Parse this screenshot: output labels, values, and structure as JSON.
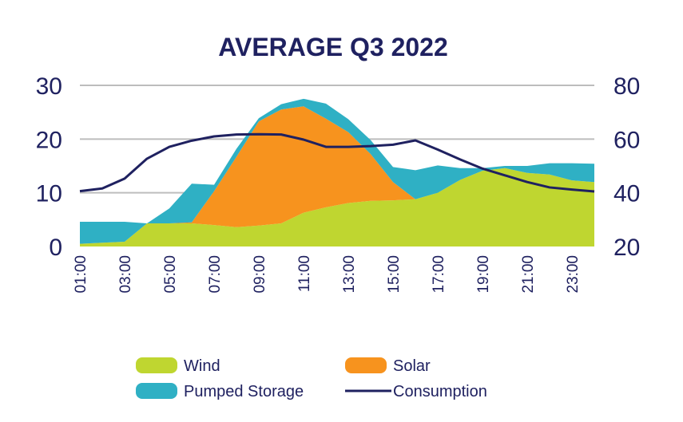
{
  "chart_data": {
    "type": "area",
    "title": "AVERAGE Q3 2022",
    "x": [
      "01:00",
      "02:00",
      "03:00",
      "04:00",
      "05:00",
      "06:00",
      "07:00",
      "08:00",
      "09:00",
      "10:00",
      "11:00",
      "12:00",
      "13:00",
      "14:00",
      "15:00",
      "16:00",
      "17:00",
      "18:00",
      "19:00",
      "20:00",
      "21:00",
      "22:00",
      "23:00",
      "24:00"
    ],
    "x_tick_labels": [
      "01:00",
      "03:00",
      "05:00",
      "07:00",
      "09:00",
      "11:00",
      "13:00",
      "15:00",
      "17:00",
      "19:00",
      "21:00",
      "23:00"
    ],
    "y_left": {
      "ylim": [
        0,
        30
      ],
      "ticks": [
        0,
        10,
        20,
        30
      ]
    },
    "y_right": {
      "ylim": [
        20,
        80
      ],
      "ticks": [
        20,
        40,
        60,
        80
      ]
    },
    "grid": true,
    "legend_position": "bottom",
    "series": [
      {
        "name": "Wind",
        "kind": "stacked-area",
        "axis": "left",
        "color": "#bfd630",
        "values": [
          0.5,
          0.7,
          0.9,
          4.3,
          4.3,
          4.3,
          4.0,
          3.6,
          3.9,
          4.3,
          6.3,
          7.3,
          8.1,
          8.5,
          8.6,
          8.8,
          10.0,
          12.4,
          14.1,
          14.6,
          13.7,
          13.4,
          12.3,
          12.0
        ]
      },
      {
        "name": "Solar",
        "kind": "stacked-area",
        "axis": "left",
        "color": "#f7931e",
        "values": [
          0,
          0,
          0,
          0,
          0,
          0.2,
          6.3,
          13.1,
          19.4,
          21.2,
          19.8,
          16.5,
          13.2,
          8.7,
          3.4,
          0,
          0,
          0,
          0,
          0,
          0,
          0,
          0,
          0
        ]
      },
      {
        "name": "Pumped Storage",
        "kind": "stacked-area",
        "axis": "left",
        "color": "#2fb0c4",
        "values": [
          4.1,
          3.9,
          3.7,
          0,
          2.8,
          7.2,
          1.2,
          1.5,
          0.6,
          1.0,
          1.4,
          2.8,
          2.4,
          2.6,
          2.8,
          5.4,
          5.1,
          2.2,
          0.5,
          0.4,
          1.3,
          2.1,
          3.2,
          3.4
        ]
      },
      {
        "name": "Consumption",
        "kind": "line",
        "axis": "right",
        "color": "#1f2160",
        "values": [
          40.6,
          41.6,
          45.3,
          52.7,
          57.1,
          59.4,
          61.0,
          61.7,
          61.8,
          61.7,
          59.8,
          57.1,
          57.1,
          57.4,
          57.9,
          59.5,
          56.1,
          52.4,
          49.0,
          46.5,
          44.0,
          42.0,
          41.2,
          40.5
        ]
      }
    ]
  }
}
